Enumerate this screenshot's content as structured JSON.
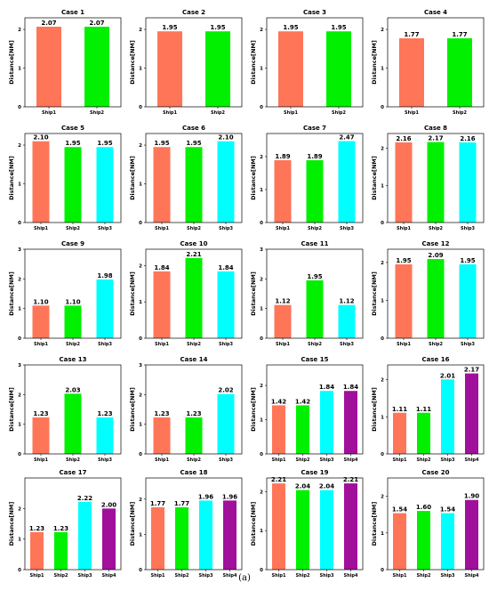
{
  "caption": "(a)",
  "colors": {
    "Ship1": "#ff7558",
    "Ship2": "#00f000",
    "Ship3": "#00ffff",
    "Ship4": "#a0109a"
  },
  "chart_data": [
    {
      "type": "bar",
      "title": "Case 1",
      "ylabel": "Distance[NM]",
      "ylim": [
        0,
        2.3
      ],
      "yticks": [
        0,
        1,
        2
      ],
      "categories": [
        "Ship1",
        "Ship2"
      ],
      "values": [
        2.07,
        2.07
      ],
      "labels": [
        "2.07",
        "2.07"
      ]
    },
    {
      "type": "bar",
      "title": "Case 2",
      "ylabel": "Distance[NM]",
      "ylim": [
        0,
        2.3
      ],
      "yticks": [
        0,
        1,
        2
      ],
      "categories": [
        "Ship1",
        "Ship2"
      ],
      "values": [
        1.95,
        1.95
      ],
      "labels": [
        "1.95",
        "1.95"
      ]
    },
    {
      "type": "bar",
      "title": "Case 3",
      "ylabel": "Distance[NM]",
      "ylim": [
        0,
        2.3
      ],
      "yticks": [
        0,
        1,
        2
      ],
      "categories": [
        "Ship1",
        "Ship2"
      ],
      "values": [
        1.95,
        1.95
      ],
      "labels": [
        "1.95",
        "1.95"
      ]
    },
    {
      "type": "bar",
      "title": "Case 4",
      "ylabel": "Distance[NM]",
      "ylim": [
        0,
        2.3
      ],
      "yticks": [
        0,
        1,
        2
      ],
      "categories": [
        "Ship1",
        "Ship2"
      ],
      "values": [
        1.77,
        1.77
      ],
      "labels": [
        "1.77",
        "1.77"
      ]
    },
    {
      "type": "bar",
      "title": "Case 5",
      "ylabel": "Distance[NM]",
      "ylim": [
        0,
        2.3
      ],
      "yticks": [
        0,
        1,
        2
      ],
      "categories": [
        "Ship1",
        "Ship2",
        "Ship3"
      ],
      "values": [
        2.1,
        1.95,
        1.95
      ],
      "labels": [
        "2.10",
        "1.95",
        "1.95"
      ]
    },
    {
      "type": "bar",
      "title": "Case 6",
      "ylabel": "Distance[NM]",
      "ylim": [
        0,
        2.3
      ],
      "yticks": [
        0,
        1,
        2
      ],
      "categories": [
        "Ship1",
        "Ship2",
        "Ship3"
      ],
      "values": [
        1.95,
        1.95,
        2.1
      ],
      "labels": [
        "1.95",
        "1.95",
        "2.10"
      ]
    },
    {
      "type": "bar",
      "title": "Case 7",
      "ylabel": "Distance[NM]",
      "ylim": [
        0,
        2.7
      ],
      "yticks": [
        0,
        1,
        2
      ],
      "categories": [
        "Ship1",
        "Ship2",
        "Ship3"
      ],
      "values": [
        1.89,
        1.89,
        2.47
      ],
      "labels": [
        "1.89",
        "1.89",
        "2.47"
      ]
    },
    {
      "type": "bar",
      "title": "Case 8",
      "ylabel": "Distance[NM]",
      "ylim": [
        0,
        2.4
      ],
      "yticks": [
        0,
        1,
        2
      ],
      "categories": [
        "Ship1",
        "Ship2",
        "Ship3"
      ],
      "values": [
        2.16,
        2.17,
        2.16
      ],
      "labels": [
        "2.16",
        "2.17",
        "2.16"
      ]
    },
    {
      "type": "bar",
      "title": "Case 9",
      "ylabel": "Distance[NM]",
      "ylim": [
        0,
        3.0
      ],
      "yticks": [
        0,
        1,
        2,
        3
      ],
      "categories": [
        "Ship1",
        "Ship2",
        "Ship3"
      ],
      "values": [
        1.1,
        1.1,
        1.98
      ],
      "labels": [
        "1.10",
        "1.10",
        "1.98"
      ]
    },
    {
      "type": "bar",
      "title": "Case 10",
      "ylabel": "Distance[NM]",
      "ylim": [
        0,
        2.45
      ],
      "yticks": [
        0,
        1,
        2
      ],
      "categories": [
        "Ship1",
        "Ship2",
        "Ship3"
      ],
      "values": [
        1.84,
        2.21,
        1.84
      ],
      "labels": [
        "1.84",
        "2.21",
        "1.84"
      ]
    },
    {
      "type": "bar",
      "title": "Case 11",
      "ylabel": "Distance[NM]",
      "ylim": [
        0,
        3.0
      ],
      "yticks": [
        0,
        1,
        2,
        3
      ],
      "categories": [
        "Ship1",
        "Ship2",
        "Ship3"
      ],
      "values": [
        1.12,
        1.95,
        1.12
      ],
      "labels": [
        "1.12",
        "1.95",
        "1.12"
      ]
    },
    {
      "type": "bar",
      "title": "Case 12",
      "ylabel": "Distance[NM]",
      "ylim": [
        0,
        2.35
      ],
      "yticks": [
        0,
        1,
        2
      ],
      "categories": [
        "Ship1",
        "Ship2",
        "Ship3"
      ],
      "values": [
        1.95,
        2.09,
        1.95
      ],
      "labels": [
        "1.95",
        "2.09",
        "1.95"
      ]
    },
    {
      "type": "bar",
      "title": "Case 13",
      "ylabel": "Distance[NM]",
      "ylim": [
        0,
        3.0
      ],
      "yticks": [
        0,
        1,
        2,
        3
      ],
      "categories": [
        "Ship1",
        "Ship2",
        "Ship3"
      ],
      "values": [
        1.23,
        2.03,
        1.23
      ],
      "labels": [
        "1.23",
        "2.03",
        "1.23"
      ]
    },
    {
      "type": "bar",
      "title": "Case 14",
      "ylabel": "Distance[NM]",
      "ylim": [
        0,
        3.0
      ],
      "yticks": [
        0,
        1,
        2,
        3
      ],
      "categories": [
        "Ship1",
        "Ship2",
        "Ship3"
      ],
      "values": [
        1.23,
        1.23,
        2.02
      ],
      "labels": [
        "1.23",
        "1.23",
        "2.02"
      ]
    },
    {
      "type": "bar",
      "title": "Case 15",
      "ylabel": "Distance[NM]",
      "ylim": [
        0,
        2.6
      ],
      "yticks": [
        0,
        1,
        2
      ],
      "categories": [
        "Ship1",
        "Ship2",
        "Ship3",
        "Ship4"
      ],
      "values": [
        1.42,
        1.42,
        1.84,
        1.84
      ],
      "labels": [
        "1.42",
        "1.42",
        "1.84",
        "1.84"
      ]
    },
    {
      "type": "bar",
      "title": "Case 16",
      "ylabel": "Distance[NM]",
      "ylim": [
        0,
        2.4
      ],
      "yticks": [
        0,
        1,
        2
      ],
      "categories": [
        "Ship1",
        "Ship2",
        "Ship3",
        "Ship4"
      ],
      "values": [
        1.11,
        1.11,
        2.01,
        2.17
      ],
      "labels": [
        "1.11",
        "1.11",
        "2.01",
        "2.17"
      ]
    },
    {
      "type": "bar",
      "title": "Case 17",
      "ylabel": "Distance[NM]",
      "ylim": [
        0,
        3.0
      ],
      "yticks": [
        0,
        1,
        2
      ],
      "categories": [
        "Ship1",
        "Ship2",
        "Ship3",
        "Ship4"
      ],
      "values": [
        1.23,
        1.23,
        2.22,
        2.0
      ],
      "labels": [
        "1.23",
        "1.23",
        "2.22",
        "2.00"
      ]
    },
    {
      "type": "bar",
      "title": "Case 18",
      "ylabel": "Distance[NM]",
      "ylim": [
        0,
        2.6
      ],
      "yticks": [
        0,
        1,
        2
      ],
      "categories": [
        "Ship1",
        "Ship2",
        "Ship3",
        "Ship4"
      ],
      "values": [
        1.77,
        1.77,
        1.96,
        1.96
      ],
      "labels": [
        "1.77",
        "1.77",
        "1.96",
        "1.96"
      ]
    },
    {
      "type": "bar",
      "title": "Case 19",
      "ylabel": "Distance[NM]",
      "ylim": [
        0,
        2.35
      ],
      "yticks": [
        0,
        1,
        2
      ],
      "categories": [
        "Ship1",
        "Ship2",
        "Ship3",
        "Ship4"
      ],
      "values": [
        2.21,
        2.04,
        2.04,
        2.21
      ],
      "labels": [
        "2.21",
        "2.04",
        "2.04",
        "2.21"
      ]
    },
    {
      "type": "bar",
      "title": "Case 20",
      "ylabel": "Distance[NM]",
      "ylim": [
        0,
        2.5
      ],
      "yticks": [
        0,
        1,
        2
      ],
      "categories": [
        "Ship1",
        "Ship2",
        "Ship3",
        "Ship4"
      ],
      "values": [
        1.54,
        1.6,
        1.54,
        1.9
      ],
      "labels": [
        "1.54",
        "1.60",
        "1.54",
        "1.90"
      ]
    }
  ]
}
